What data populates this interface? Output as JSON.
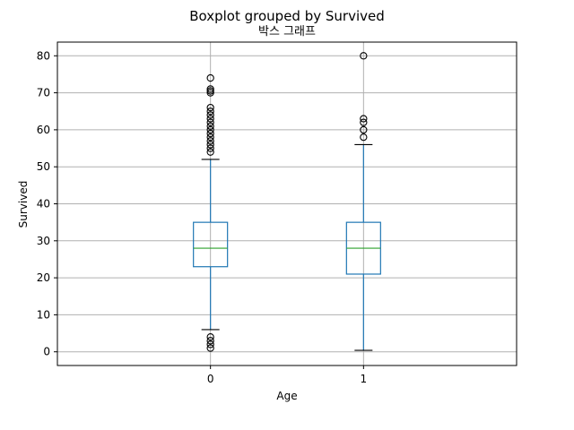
{
  "chart_data": {
    "type": "boxplot",
    "suptitle": "Boxplot grouped by Survived",
    "title": "박스 그래프",
    "xlabel": "Age",
    "ylabel": "Survived",
    "categories": [
      "0",
      "1"
    ],
    "ylim": [
      -3.7,
      83.7
    ],
    "yticks": [
      0,
      10,
      20,
      30,
      40,
      50,
      60,
      70,
      80
    ],
    "grid": true,
    "colors": {
      "box": "#1f77b4",
      "median": "#2ca02c",
      "grid": "#b0b0b0",
      "flier": "#000000"
    },
    "boxes": [
      {
        "category": "0",
        "whisker_low": 6,
        "q1": 23,
        "median": 28,
        "q3": 35,
        "whisker_high": 52,
        "fliers": [
          1,
          2,
          3,
          4,
          54,
          55,
          56,
          57,
          58,
          59,
          60,
          61,
          62,
          63,
          64,
          65,
          66,
          70,
          70.5,
          71,
          74
        ]
      },
      {
        "category": "1",
        "whisker_low": 0.4,
        "q1": 21,
        "median": 28,
        "q3": 35,
        "whisker_high": 56,
        "fliers": [
          58,
          60,
          62,
          63,
          80
        ]
      }
    ]
  }
}
